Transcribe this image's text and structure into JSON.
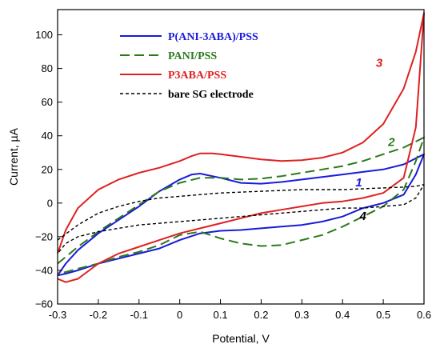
{
  "chart_data": {
    "type": "line",
    "xlabel": "Potential, V",
    "ylabel": "Current, µA",
    "xlim": [
      -0.3,
      0.6
    ],
    "ylim": [
      -60,
      115
    ],
    "xticks": [
      -0.3,
      -0.2,
      -0.1,
      0,
      0.1,
      0.2,
      0.3,
      0.4,
      0.5,
      0.6
    ],
    "xtick_labels": [
      "-0.3",
      "-0.2",
      "-0.1",
      "0",
      "0.1",
      "0.2",
      "0.3",
      "0.4",
      "0.5",
      "0.6"
    ],
    "yticks": [
      -60,
      -40,
      -20,
      0,
      20,
      40,
      60,
      80,
      100
    ],
    "ytick_labels": [
      "−60",
      "−40",
      "−20",
      "0",
      "20",
      "40",
      "60",
      "80",
      "100"
    ],
    "grid": false,
    "legend_position": "top-center",
    "series": [
      {
        "name": "P(ANI-3ABA)/PSS",
        "label": "1",
        "color": "#1a1adc",
        "dash": "solid",
        "x": [
          -0.3,
          -0.28,
          -0.25,
          -0.2,
          -0.15,
          -0.1,
          -0.05,
          0,
          0.03,
          0.05,
          0.08,
          0.1,
          0.15,
          0.2,
          0.25,
          0.3,
          0.35,
          0.4,
          0.45,
          0.5,
          0.55,
          0.6,
          0.58,
          0.55,
          0.5,
          0.45,
          0.4,
          0.35,
          0.3,
          0.25,
          0.2,
          0.15,
          0.1,
          0.05,
          0,
          -0.05,
          -0.1,
          -0.15,
          -0.2,
          -0.25,
          -0.28,
          -0.3
        ],
        "y": [
          -43,
          -36,
          -28,
          -18,
          -10,
          -2,
          7,
          14,
          17,
          17.5,
          16,
          15,
          12,
          11.5,
          12.5,
          14,
          15.5,
          17,
          18.5,
          20,
          23,
          29,
          17,
          5,
          0,
          -3,
          -8,
          -11,
          -13,
          -14,
          -15,
          -16,
          -16.5,
          -18,
          -22,
          -27,
          -30,
          -33,
          -36,
          -40,
          -42,
          -43
        ]
      },
      {
        "name": "PANI/PSS",
        "label": "2",
        "color": "#2a7a1a",
        "dash": "long",
        "x": [
          -0.3,
          -0.28,
          -0.25,
          -0.2,
          -0.15,
          -0.1,
          -0.05,
          0,
          0.05,
          0.1,
          0.15,
          0.2,
          0.25,
          0.3,
          0.35,
          0.4,
          0.45,
          0.5,
          0.55,
          0.6,
          0.58,
          0.55,
          0.5,
          0.45,
          0.4,
          0.35,
          0.3,
          0.25,
          0.2,
          0.15,
          0.1,
          0.05,
          0,
          -0.05,
          -0.1,
          -0.15,
          -0.2,
          -0.25,
          -0.28,
          -0.3
        ],
        "y": [
          -36,
          -32,
          -26,
          -17,
          -9,
          -1,
          7,
          12,
          15,
          15,
          14,
          14.5,
          16,
          18,
          20,
          22,
          25,
          29,
          33,
          39,
          25,
          8,
          -2,
          -8,
          -14,
          -19,
          -22,
          -25,
          -25.5,
          -24,
          -21,
          -17,
          -19,
          -25,
          -29,
          -32,
          -36,
          -39,
          -41,
          -42
        ]
      },
      {
        "name": "P3ABA/PSS",
        "label": "3",
        "color": "#e02020",
        "dash": "solid",
        "x": [
          -0.3,
          -0.28,
          -0.25,
          -0.2,
          -0.15,
          -0.1,
          -0.05,
          0,
          0.03,
          0.05,
          0.08,
          0.1,
          0.15,
          0.2,
          0.25,
          0.3,
          0.35,
          0.4,
          0.45,
          0.5,
          0.55,
          0.58,
          0.6,
          0.58,
          0.55,
          0.5,
          0.45,
          0.4,
          0.35,
          0.3,
          0.25,
          0.2,
          0.15,
          0.1,
          0.05,
          0,
          -0.05,
          -0.1,
          -0.15,
          -0.2,
          -0.25,
          -0.28,
          -0.3
        ],
        "y": [
          -30,
          -16,
          -3,
          8,
          14,
          18,
          21,
          25,
          28,
          29.5,
          29.5,
          29,
          27.5,
          26,
          25,
          25.5,
          27,
          30,
          36,
          47,
          68,
          90,
          113,
          45,
          15,
          6,
          3,
          1,
          0,
          -2,
          -4,
          -6,
          -9,
          -12,
          -15,
          -18,
          -22,
          -26,
          -30,
          -36,
          -45,
          -47,
          -45
        ]
      },
      {
        "name": "bare SG electrode",
        "label": "4",
        "color": "#000000",
        "dash": "short",
        "x": [
          -0.3,
          -0.25,
          -0.2,
          -0.15,
          -0.1,
          -0.05,
          0,
          0.1,
          0.2,
          0.3,
          0.4,
          0.5,
          0.55,
          0.58,
          0.6,
          0.58,
          0.55,
          0.5,
          0.45,
          0.4,
          0.3,
          0.2,
          0.1,
          0,
          -0.1,
          -0.2,
          -0.25,
          -0.28,
          -0.3
        ],
        "y": [
          -22,
          -13,
          -6,
          -2,
          1,
          3,
          4,
          6,
          7,
          8,
          8,
          9,
          9.5,
          10,
          11,
          3,
          -1,
          -2,
          -3,
          -3,
          -5,
          -7,
          -9,
          -11,
          -13,
          -17,
          -20,
          -24,
          -30
        ]
      }
    ]
  }
}
